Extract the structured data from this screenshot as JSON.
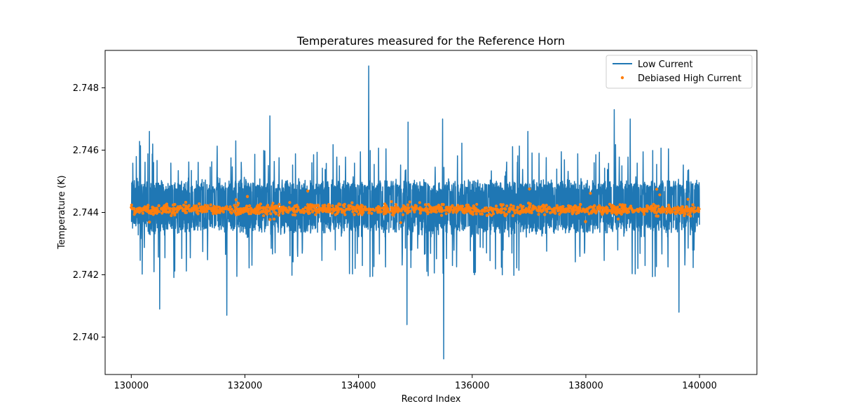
{
  "chart_data": {
    "type": "line",
    "title": "Temperatures measured for the Reference Horn",
    "xlabel": "Record Index",
    "ylabel": "Temperature (K)",
    "xlim": [
      129540,
      141010
    ],
    "ylim": [
      2.7388,
      2.7492
    ],
    "x_ticks": [
      130000,
      132000,
      134000,
      136000,
      138000,
      140000
    ],
    "x_tick_labels": [
      "130000",
      "132000",
      "134000",
      "136000",
      "138000",
      "140000"
    ],
    "y_ticks": [
      2.74,
      2.742,
      2.744,
      2.746,
      2.748
    ],
    "y_tick_labels": [
      "2.740",
      "2.742",
      "2.744",
      "2.746",
      "2.748"
    ],
    "legend_position": "top-right",
    "grid": false,
    "series": [
      {
        "name": "Low Current",
        "style": "line",
        "color": "#1f77b4",
        "x_range": [
          130000,
          140000
        ],
        "level_mean": 2.7441,
        "band_low": 2.7436,
        "band_high": 2.7448,
        "notable_points": [
          {
            "x": 130500,
            "y": 2.7409
          },
          {
            "x": 130320,
            "y": 2.7466
          },
          {
            "x": 131680,
            "y": 2.7407
          },
          {
            "x": 132440,
            "y": 2.7471
          },
          {
            "x": 134180,
            "y": 2.7487
          },
          {
            "x": 134850,
            "y": 2.7404
          },
          {
            "x": 134870,
            "y": 2.7469
          },
          {
            "x": 135480,
            "y": 2.747
          },
          {
            "x": 135500,
            "y": 2.7393
          },
          {
            "x": 136980,
            "y": 2.7466
          },
          {
            "x": 138500,
            "y": 2.7473
          },
          {
            "x": 138780,
            "y": 2.747
          },
          {
            "x": 139640,
            "y": 2.7408
          }
        ]
      },
      {
        "name": "Debiased High Current",
        "style": "scatter",
        "color": "#ff7f0e",
        "x_range": [
          130000,
          140000
        ],
        "level_mean": 2.7441,
        "band_low": 2.7439,
        "band_high": 2.7443
      }
    ]
  }
}
